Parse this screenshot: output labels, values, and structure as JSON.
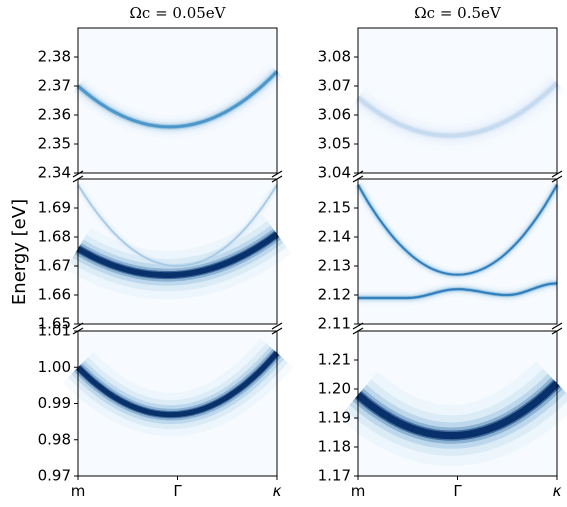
{
  "chart_data": {
    "type": "heatmap",
    "ylabel": "Energy [eV]",
    "x_ticks": [
      "m",
      "Γ",
      "κ"
    ],
    "columns": [
      {
        "title": "Ω_c = 0.05eV",
        "title_text": "Ωc = 0.05eV",
        "panels": [
          {
            "ylim": [
              2.34,
              2.39
            ],
            "yticks": [
              "2.34",
              "2.35",
              "2.36",
              "2.37",
              "2.38"
            ],
            "bands": [
              {
                "x": [
                  0,
                  0.5,
                  1
                ],
                "energy": [
                  2.37,
                  2.356,
                  2.375
                ],
                "intensity": 0.6,
                "width": 0.0013
              }
            ]
          },
          {
            "ylim": [
              1.65,
              1.7
            ],
            "yticks": [
              "1.65",
              "1.66",
              "1.67",
              "1.68",
              "1.69"
            ],
            "bands": [
              {
                "x": [
                  0,
                  0.5,
                  1
                ],
                "energy": [
                  1.676,
                  1.667,
                  1.681
                ],
                "intensity": 1.0,
                "width": 0.0028
              },
              {
                "x": [
                  0,
                  0.5,
                  1
                ],
                "energy": [
                  1.698,
                  1.67,
                  1.698
                ],
                "intensity": 0.35,
                "width": 0.0006
              }
            ]
          },
          {
            "ylim": [
              0.97,
              1.01
            ],
            "yticks": [
              "0.97",
              "0.98",
              "0.99",
              "1.00",
              "1.01"
            ],
            "bands": [
              {
                "x": [
                  0,
                  0.5,
                  1
                ],
                "energy": [
                  1.0,
                  0.987,
                  1.004
                ],
                "intensity": 1.0,
                "width": 0.002
              }
            ]
          }
        ]
      },
      {
        "title": "Ω_c = 0.5eV",
        "title_text": "Ωc = 0.5eV",
        "panels": [
          {
            "ylim": [
              3.04,
              3.09
            ],
            "yticks": [
              "3.04",
              "3.05",
              "3.06",
              "3.07",
              "3.08"
            ],
            "bands": [
              {
                "x": [
                  0,
                  0.5,
                  1
                ],
                "energy": [
                  3.066,
                  3.053,
                  3.071
                ],
                "intensity": 0.25,
                "width": 0.0018
              }
            ]
          },
          {
            "ylim": [
              2.11,
              2.16
            ],
            "yticks": [
              "2.11",
              "2.12",
              "2.13",
              "2.14",
              "2.15"
            ],
            "bands": [
              {
                "x": [
                  0,
                  0.25,
                  0.5,
                  0.75,
                  1
                ],
                "energy": [
                  2.119,
                  2.119,
                  2.122,
                  2.12,
                  2.124
                ],
                "intensity": 0.7,
                "width": 0.0009
              },
              {
                "x": [
                  0,
                  0.5,
                  1
                ],
                "energy": [
                  2.158,
                  2.127,
                  2.158
                ],
                "intensity": 0.7,
                "width": 0.0008
              }
            ]
          },
          {
            "ylim": [
              1.17,
              1.22
            ],
            "yticks": [
              "1.17",
              "1.18",
              "1.19",
              "1.20",
              "1.21"
            ],
            "bands": [
              {
                "x": [
                  0,
                  0.5,
                  1
                ],
                "energy": [
                  1.198,
                  1.184,
                  1.202
                ],
                "intensity": 1.0,
                "width": 0.0035
              }
            ]
          }
        ]
      }
    ]
  }
}
